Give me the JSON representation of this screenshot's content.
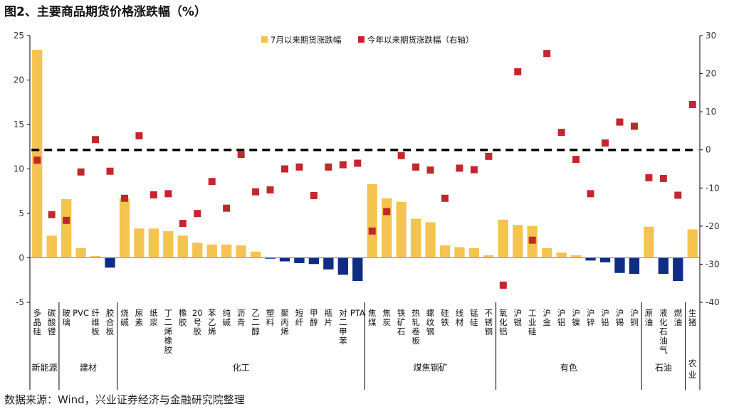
{
  "title": "图2、主要商品期货价格涨跌幅（%）",
  "source": "数据来源：Wind，兴业证券经济与金融研究院整理",
  "colors": {
    "bar_pos": "#F5C350",
    "bar_neg": "#0E2D83",
    "marker": "#C0282D",
    "zero_line": "#000000"
  },
  "chart_data": {
    "type": "bar",
    "y_left": {
      "min": -5,
      "max": 25,
      "ticks": [
        -5,
        0,
        5,
        10,
        15,
        20,
        25
      ]
    },
    "y_right": {
      "min": -40,
      "max": 30,
      "ticks": [
        -40,
        -30,
        -20,
        -10,
        0,
        10,
        20,
        30
      ]
    },
    "legend": {
      "position": "top",
      "bar_label": "7月以来期货涨跌幅",
      "marker_label": "今年以来期货涨跌幅（右轴）"
    },
    "categories": [
      "多晶硅",
      "碳酸锂",
      "玻璃",
      "PVC",
      "纤维板",
      "胶合板",
      "烧碱",
      "尿素",
      "纸浆",
      "丁二烯橡胶",
      "橡胶",
      "20号胶",
      "苯乙烯",
      "纯碱",
      "沥青",
      "乙二醇",
      "塑料",
      "聚丙烯",
      "短纤",
      "甲醇",
      "瓶片",
      "对二甲苯",
      "PTA",
      "焦煤",
      "焦炭",
      "铁矿石",
      "热轧卷板",
      "螺纹钢",
      "硅铁",
      "线材",
      "锰硅",
      "不锈钢",
      "氧化铝",
      "沪银",
      "工业硅",
      "沪金",
      "沪铝",
      "沪镍",
      "沪锌",
      "沪铅",
      "沪锡",
      "沪铜",
      "原油",
      "液化石油气",
      "燃油",
      "生猪"
    ],
    "category_labels": [
      "多晶硅",
      "碳酸锂",
      "玻璃",
      "PVC",
      "纤维板",
      "胶合板",
      "烧碱",
      "尿素",
      "纸浆",
      "丁二烯橡胶",
      "橡胶",
      "20号胶",
      "苯乙烯",
      "纯碱",
      "沥青",
      "乙二醇",
      "塑料",
      "聚丙烯",
      "短纤",
      "甲醇",
      "瓶片",
      "对二甲苯",
      "PTA",
      "焦煤",
      "焦炭",
      "铁矿石",
      "热轧卷板",
      "螺纹钢",
      "硅铁",
      "线材",
      "锰硅",
      "不锈钢",
      "氧化铝",
      "沪银",
      "工业硅",
      "沪金",
      "沪铝",
      "沪镍",
      "沪锌",
      "沪铅",
      "沪锡",
      "沪铜",
      "原油",
      "液化石油气",
      "燃油",
      "生猪"
    ],
    "series": [
      {
        "name": "7月以来期货涨跌幅",
        "axis": "left",
        "kind": "bar",
        "values": [
          23.4,
          2.5,
          6.6,
          1.1,
          0.2,
          -1.1,
          6.7,
          3.3,
          3.3,
          3.0,
          2.5,
          1.7,
          1.5,
          1.5,
          1.4,
          0.7,
          -0.1,
          -0.4,
          -0.6,
          -0.7,
          -1.3,
          -1.9,
          -2.6,
          8.3,
          6.7,
          6.3,
          4.4,
          4.0,
          1.4,
          1.2,
          1.1,
          0.3,
          4.3,
          3.7,
          3.6,
          1.1,
          0.6,
          0.3,
          -0.3,
          -0.5,
          -1.7,
          -1.8,
          3.5,
          -1.8,
          -2.6,
          3.2
        ]
      },
      {
        "name": "今年以来期货涨跌幅（右轴）",
        "axis": "right",
        "kind": "marker",
        "values": [
          -2.7,
          -17.0,
          -18.5,
          -5.8,
          2.7,
          -5.6,
          -12.7,
          3.7,
          -11.8,
          -11.5,
          -19.3,
          -16.7,
          -8.3,
          -15.3,
          -1.2,
          -11.0,
          -10.5,
          -5.0,
          -4.5,
          -12.0,
          -4.5,
          -3.9,
          -3.5,
          -21.3,
          -16.2,
          -1.5,
          -4.5,
          -5.3,
          -12.7,
          -4.8,
          -5.2,
          -1.7,
          -35.5,
          20.5,
          -23.7,
          25.3,
          4.6,
          -2.5,
          -11.5,
          1.8,
          7.3,
          6.2,
          -7.3,
          -7.5,
          -11.9,
          11.9
        ]
      }
    ],
    "groups": [
      {
        "name": "新能源",
        "start": 0,
        "end": 1
      },
      {
        "name": "建材",
        "start": 2,
        "end": 5
      },
      {
        "name": "化工",
        "start": 6,
        "end": 22
      },
      {
        "name": "煤焦钢矿",
        "start": 23,
        "end": 31
      },
      {
        "name": "有色",
        "start": 32,
        "end": 41
      },
      {
        "name": "石油",
        "start": 42,
        "end": 44
      },
      {
        "name": "农业",
        "start": 45,
        "end": 45
      }
    ],
    "reference_line": {
      "axis": "right",
      "value": 0,
      "style": "dashed"
    }
  }
}
